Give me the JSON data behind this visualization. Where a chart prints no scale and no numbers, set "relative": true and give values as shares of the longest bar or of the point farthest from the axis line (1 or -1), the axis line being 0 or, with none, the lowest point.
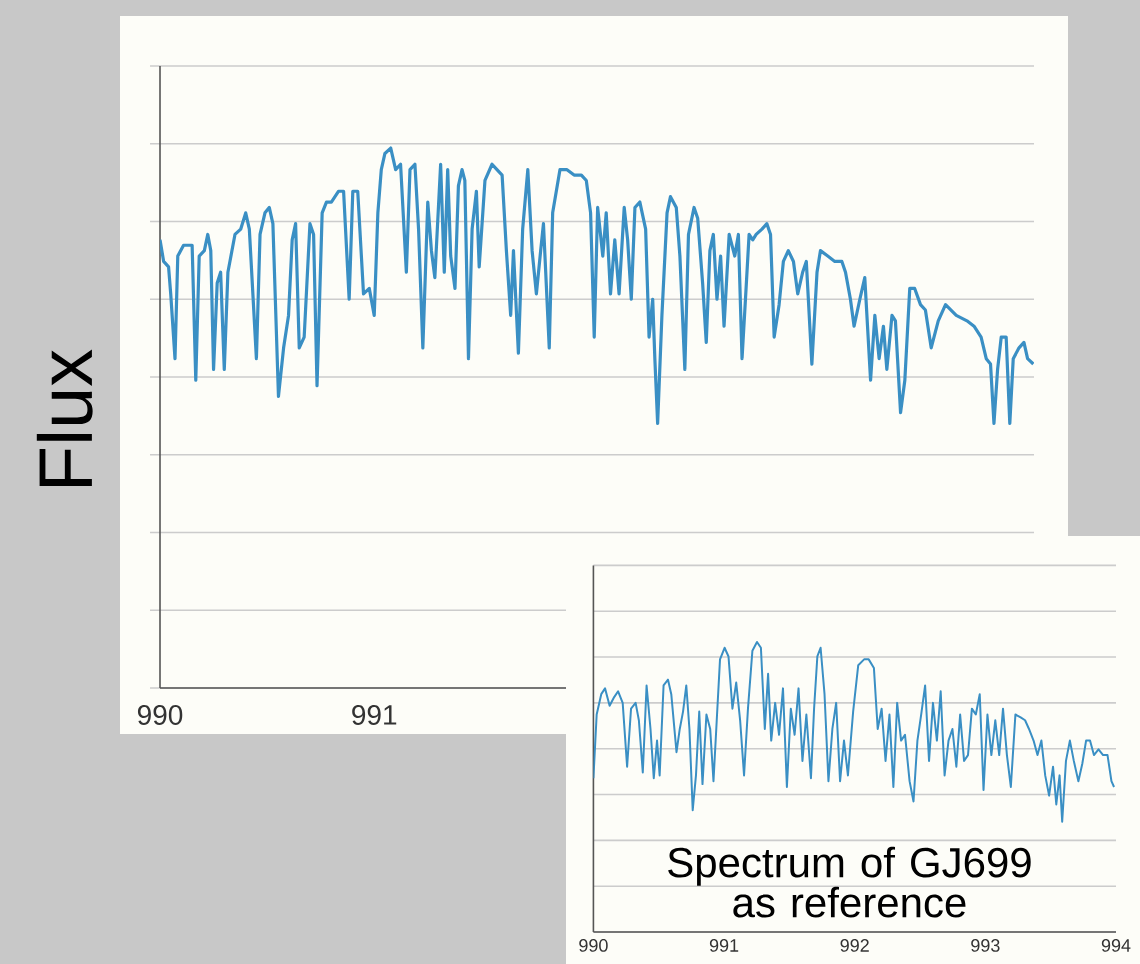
{
  "chart_data": [
    {
      "type": "line",
      "ylabel": "Flux",
      "relative": true,
      "grid": "y",
      "color": "#3a8fc4",
      "xlim": [
        990,
        994.08
      ],
      "xticks": [
        990,
        991
      ],
      "x": [
        990,
        990.017,
        990.04,
        990.05,
        990.07,
        990.083,
        990.11,
        990.133,
        990.15,
        990.167,
        990.183,
        990.207,
        990.223,
        990.237,
        990.25,
        990.267,
        990.283,
        990.3,
        990.317,
        990.35,
        990.377,
        990.4,
        990.417,
        990.45,
        990.467,
        990.49,
        990.51,
        990.527,
        990.553,
        990.577,
        990.6,
        990.617,
        990.633,
        990.65,
        990.673,
        990.7,
        990.717,
        990.733,
        990.757,
        990.777,
        990.8,
        990.833,
        990.857,
        990.883,
        990.9,
        990.923,
        990.95,
        990.977,
        991,
        991.017,
        991.033,
        991.05,
        991.077,
        991.1,
        991.123,
        991.15,
        991.167,
        991.19,
        991.207,
        991.227,
        991.25,
        991.267,
        991.283,
        991.31,
        991.327,
        991.343,
        991.357,
        991.377,
        991.393,
        991.41,
        991.423,
        991.44,
        991.457,
        991.477,
        991.49,
        991.517,
        991.55,
        991.573,
        991.597,
        991.617,
        991.637,
        991.65,
        991.673,
        991.693,
        991.717,
        991.737,
        991.757,
        991.777,
        991.79,
        991.817,
        991.833,
        991.867,
        991.9,
        991.933,
        991.967,
        991.99,
        992.01,
        992.027,
        992.043,
        992.067,
        992.083,
        992.103,
        992.123,
        992.143,
        992.167,
        992.183,
        992.2,
        992.217,
        992.24,
        992.267,
        992.283,
        992.3,
        992.31,
        992.323,
        992.343,
        992.367,
        992.383,
        992.41,
        992.427,
        992.45,
        992.467,
        992.493,
        992.51,
        992.533,
        992.55,
        992.567,
        992.583,
        992.6,
        992.617,
        992.633,
        992.657,
        992.683,
        992.7,
        992.717,
        992.733,
        992.75,
        992.767,
        992.783,
        992.81,
        992.833,
        992.85,
        992.867,
        992.89,
        992.91,
        992.933,
        992.957,
        992.977,
        993,
        993.017,
        993.043,
        993.067,
        993.083,
        993.117,
        993.15,
        993.183,
        993.2,
        993.223,
        993.24,
        993.267,
        993.29,
        993.317,
        993.337,
        993.357,
        993.377,
        993.393,
        993.417,
        993.433,
        993.457,
        993.477,
        993.5,
        993.523,
        993.55,
        993.573,
        993.6,
        993.633,
        993.667,
        993.717,
        993.767,
        993.8,
        993.833,
        993.857,
        993.877,
        993.893,
        993.91,
        993.927,
        993.95,
        993.967,
        993.983,
        994.01,
        994.033,
        994.05,
        994.077
      ],
      "values": [
        0.83,
        0.79,
        0.78,
        0.73,
        0.61,
        0.8,
        0.82,
        0.82,
        0.82,
        0.57,
        0.8,
        0.81,
        0.84,
        0.81,
        0.59,
        0.75,
        0.77,
        0.59,
        0.77,
        0.84,
        0.85,
        0.88,
        0.85,
        0.61,
        0.84,
        0.88,
        0.89,
        0.86,
        0.54,
        0.63,
        0.69,
        0.83,
        0.86,
        0.63,
        0.65,
        0.86,
        0.84,
        0.56,
        0.88,
        0.9,
        0.9,
        0.92,
        0.92,
        0.72,
        0.92,
        0.92,
        0.73,
        0.74,
        0.69,
        0.88,
        0.96,
        0.99,
        1,
        0.96,
        0.97,
        0.77,
        0.96,
        0.97,
        0.85,
        0.63,
        0.9,
        0.81,
        0.76,
        0.97,
        0.77,
        0.96,
        0.8,
        0.74,
        0.93,
        0.96,
        0.94,
        0.61,
        0.85,
        0.92,
        0.78,
        0.94,
        0.97,
        0.96,
        0.95,
        0.81,
        0.69,
        0.81,
        0.62,
        0.85,
        0.96,
        0.81,
        0.73,
        0.81,
        0.86,
        0.63,
        0.88,
        0.96,
        0.96,
        0.95,
        0.95,
        0.94,
        0.88,
        0.65,
        0.89,
        0.8,
        0.88,
        0.73,
        0.83,
        0.73,
        0.89,
        0.83,
        0.72,
        0.89,
        0.9,
        0.85,
        0.65,
        0.72,
        0.61,
        0.49,
        0.69,
        0.88,
        0.91,
        0.89,
        0.8,
        0.59,
        0.84,
        0.89,
        0.87,
        0.75,
        0.64,
        0.81,
        0.84,
        0.72,
        0.8,
        0.67,
        0.84,
        0.8,
        0.84,
        0.61,
        0.72,
        0.84,
        0.83,
        0.84,
        0.85,
        0.86,
        0.84,
        0.65,
        0.71,
        0.79,
        0.81,
        0.79,
        0.73,
        0.77,
        0.79,
        0.6,
        0.77,
        0.81,
        0.8,
        0.79,
        0.79,
        0.77,
        0.72,
        0.67,
        0.72,
        0.76,
        0.57,
        0.69,
        0.61,
        0.67,
        0.59,
        0.69,
        0.68,
        0.51,
        0.57,
        0.74,
        0.74,
        0.71,
        0.7,
        0.63,
        0.68,
        0.71,
        0.69,
        0.68,
        0.67,
        0.65,
        0.61,
        0.6,
        0.49,
        0.59,
        0.65,
        0.65,
        0.49,
        0.61,
        0.63,
        0.64,
        0.61,
        0.6
      ]
    },
    {
      "type": "line",
      "relative": true,
      "grid": "y",
      "color": "#3a8fc4",
      "xlim": [
        990,
        994
      ],
      "xticks": [
        990,
        991,
        992,
        993,
        994
      ],
      "annotations": [
        "Spectrum of GJ699 as reference"
      ],
      "x": [
        990,
        990.025,
        990.06,
        990.089,
        990.124,
        990.159,
        990.189,
        990.224,
        990.258,
        990.288,
        990.323,
        990.348,
        990.378,
        990.407,
        990.437,
        990.462,
        990.487,
        990.507,
        990.537,
        990.571,
        990.596,
        990.636,
        990.661,
        990.686,
        990.711,
        990.735,
        990.76,
        990.785,
        990.81,
        990.835,
        990.865,
        990.894,
        990.919,
        990.944,
        990.969,
        991.004,
        991.034,
        991.064,
        991.093,
        991.123,
        991.153,
        991.183,
        991.217,
        991.252,
        991.282,
        991.312,
        991.337,
        991.361,
        991.391,
        991.421,
        991.451,
        991.481,
        991.511,
        991.54,
        991.57,
        991.6,
        991.63,
        991.665,
        991.689,
        991.714,
        991.739,
        991.769,
        991.799,
        991.829,
        991.858,
        991.888,
        991.918,
        991.948,
        991.988,
        992.027,
        992.072,
        992.107,
        992.147,
        992.176,
        992.206,
        992.236,
        992.266,
        992.296,
        992.325,
        992.355,
        992.385,
        992.42,
        992.45,
        992.48,
        992.509,
        992.539,
        992.569,
        992.599,
        992.629,
        992.658,
        992.688,
        992.718,
        992.748,
        992.778,
        992.807,
        992.837,
        992.867,
        992.897,
        992.927,
        992.957,
        992.986,
        993.016,
        993.046,
        993.076,
        993.106,
        993.135,
        993.165,
        993.195,
        993.23,
        993.27,
        993.304,
        993.334,
        993.369,
        993.399,
        993.429,
        993.458,
        993.488,
        993.518,
        993.543,
        993.568,
        993.588,
        993.617,
        993.647,
        993.677,
        993.712,
        993.742,
        993.771,
        993.801,
        993.831,
        993.866,
        993.901,
        993.935,
        993.965,
        993.985
      ],
      "values": [
        0.53,
        0.75,
        0.82,
        0.84,
        0.78,
        0.81,
        0.83,
        0.79,
        0.57,
        0.77,
        0.79,
        0.73,
        0.55,
        0.85,
        0.7,
        0.53,
        0.66,
        0.54,
        0.85,
        0.87,
        0.82,
        0.62,
        0.7,
        0.76,
        0.85,
        0.7,
        0.42,
        0.54,
        0.76,
        0.51,
        0.75,
        0.7,
        0.52,
        0.73,
        0.94,
        0.98,
        0.95,
        0.77,
        0.86,
        0.73,
        0.54,
        0.77,
        0.97,
        1,
        0.98,
        0.7,
        0.89,
        0.66,
        0.79,
        0.68,
        0.84,
        0.5,
        0.77,
        0.68,
        0.84,
        0.59,
        0.75,
        0.53,
        0.77,
        0.95,
        0.98,
        0.82,
        0.52,
        0.7,
        0.79,
        0.52,
        0.66,
        0.54,
        0.76,
        0.92,
        0.94,
        0.94,
        0.91,
        0.7,
        0.77,
        0.59,
        0.75,
        0.5,
        0.79,
        0.66,
        0.68,
        0.52,
        0.45,
        0.66,
        0.75,
        0.85,
        0.59,
        0.79,
        0.66,
        0.83,
        0.54,
        0.66,
        0.7,
        0.57,
        0.75,
        0.59,
        0.61,
        0.77,
        0.75,
        0.82,
        0.49,
        0.75,
        0.61,
        0.73,
        0.61,
        0.77,
        0.61,
        0.5,
        0.75,
        0.74,
        0.73,
        0.7,
        0.66,
        0.61,
        0.66,
        0.54,
        0.47,
        0.57,
        0.44,
        0.54,
        0.38,
        0.59,
        0.66,
        0.59,
        0.52,
        0.58,
        0.66,
        0.66,
        0.61,
        0.63,
        0.61,
        0.61,
        0.52,
        0.5
      ]
    }
  ]
}
